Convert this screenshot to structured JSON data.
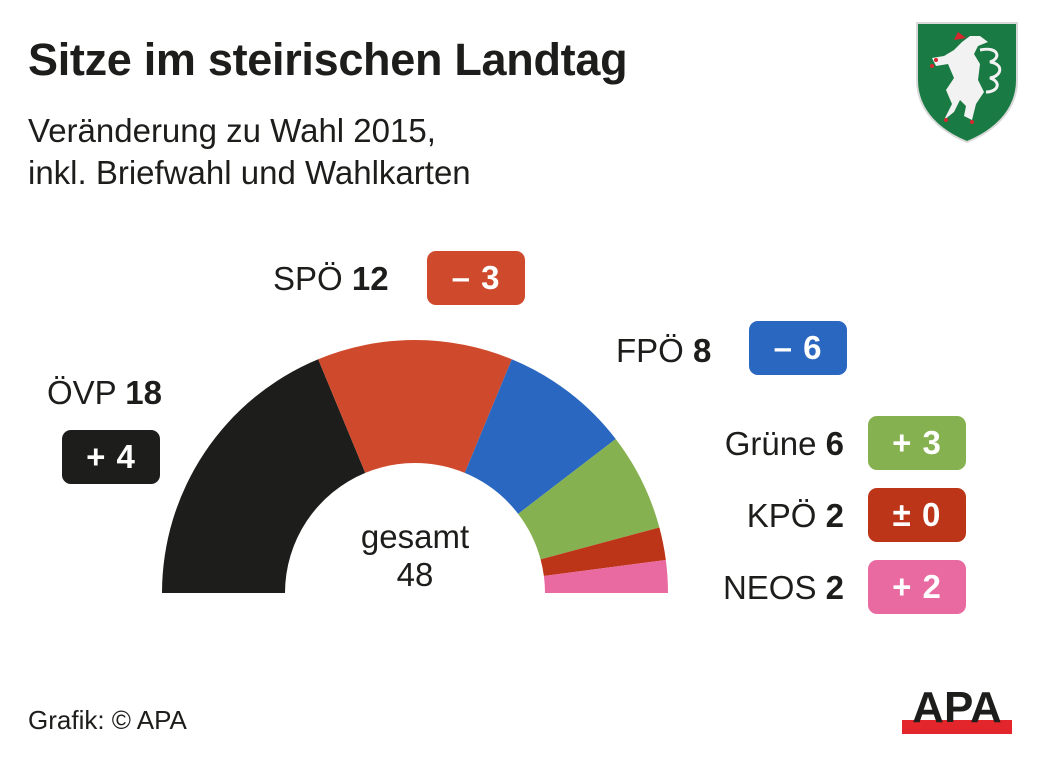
{
  "header": {
    "title": "Sitze im steirischen Landtag",
    "subtitle_line1": "Veränderung zu Wahl 2015,",
    "subtitle_line2": "inkl. Briefwahl und Wahlkarten",
    "crest_icon": "styria-coat-of-arms-icon"
  },
  "chart_data": {
    "type": "pie",
    "subtype": "half-donut parliament seats",
    "title": "Sitze im steirischen Landtag",
    "subtitle": "Veränderung zu Wahl 2015, inkl. Briefwahl und Wahlkarten",
    "total_label": "gesamt",
    "total": 48,
    "series": [
      {
        "name": "ÖVP",
        "seats": 18,
        "change": 4,
        "change_label": "+ 4",
        "color": "#1d1d1b"
      },
      {
        "name": "SPÖ",
        "seats": 12,
        "change": -3,
        "change_label": "– 3",
        "color": "#cf4a2c"
      },
      {
        "name": "FPÖ",
        "seats": 8,
        "change": -6,
        "change_label": "– 6",
        "color": "#2a67c0"
      },
      {
        "name": "Grüne",
        "seats": 6,
        "change": 3,
        "change_label": "+ 3",
        "color": "#86b150"
      },
      {
        "name": "KPÖ",
        "seats": 2,
        "change": 0,
        "change_label": "± 0",
        "color": "#bd3518"
      },
      {
        "name": "NEOS",
        "seats": 2,
        "change": 2,
        "change_label": "+ 2",
        "color": "#e96aa1"
      }
    ]
  },
  "footer": {
    "credit": "Grafik: © APA",
    "logo_text": "APA",
    "logo_icon": "apa-logo-icon"
  }
}
